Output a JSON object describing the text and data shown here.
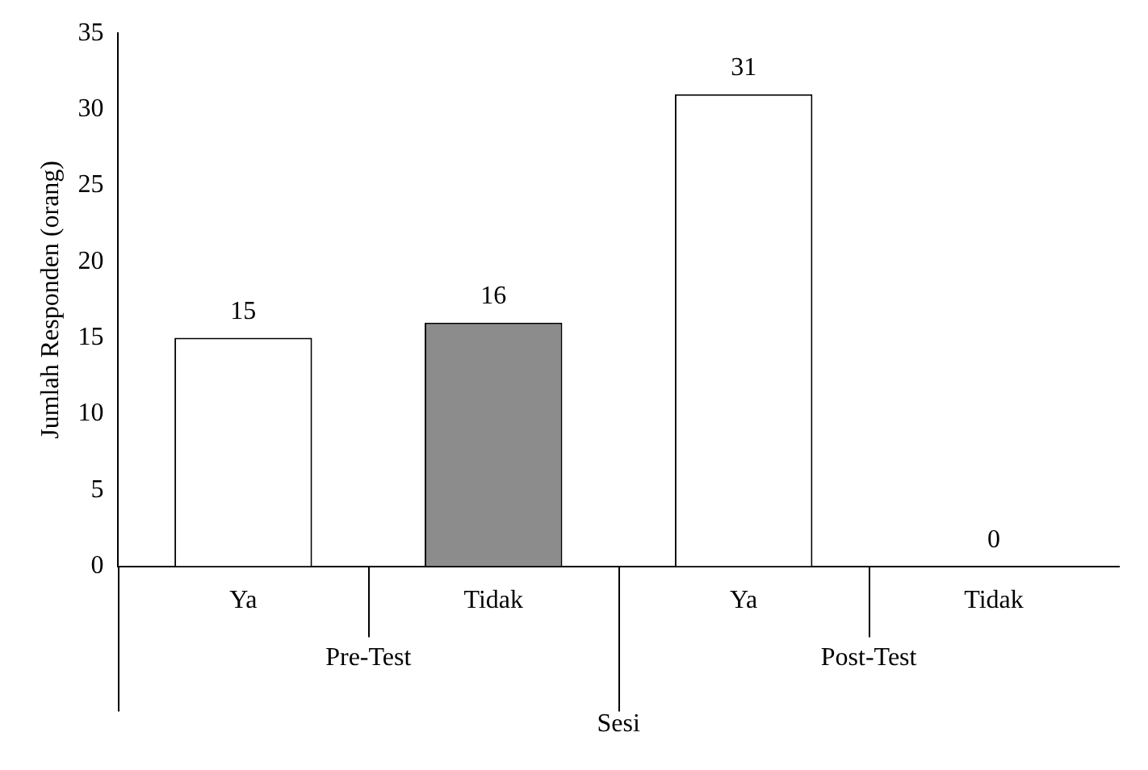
{
  "chart_data": {
    "type": "bar",
    "xlabel": "Sesi",
    "ylabel": "Jumlah Responden (orang)",
    "categories": [
      "Ya",
      "Tidak",
      "Ya",
      "Tidak"
    ],
    "values": [
      15,
      16,
      31,
      0
    ],
    "colors": [
      "#ffffff",
      "#8c8c8c",
      "#ffffff",
      "#8c8c8c"
    ],
    "ylim": [
      0,
      35
    ],
    "yticks": [
      0,
      5,
      10,
      15,
      20,
      25,
      30,
      35
    ],
    "data_labels": true,
    "grid": false,
    "annotations": [
      "Pre-Test",
      "Post-Test"
    ]
  }
}
